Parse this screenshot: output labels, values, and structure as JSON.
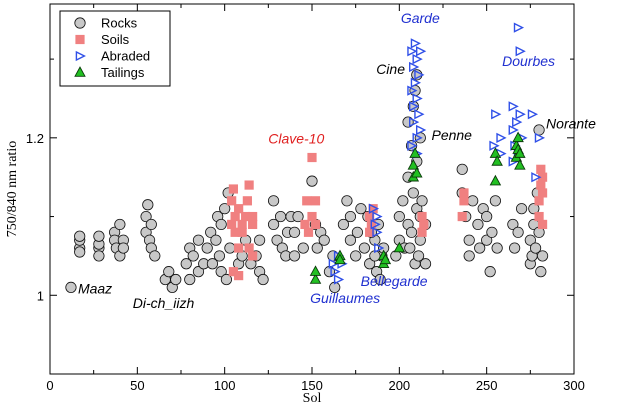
{
  "chart_data": {
    "type": "scatter",
    "xlabel": "Sol",
    "ylabel": "750/840 nm ratio",
    "xlim": [
      0,
      300
    ],
    "ylim": [
      0.9,
      1.37
    ],
    "x_ticks": [
      0,
      50,
      100,
      150,
      200,
      250,
      300
    ],
    "y_ticks": [
      1,
      1.2
    ],
    "grid": false,
    "legend_position": "top-left",
    "colors": {
      "rocks": "#c8c8c8",
      "soils": "#f08080",
      "abraded": "#3050e8",
      "tailings": "#22c022"
    },
    "series": [
      {
        "name": "Rocks",
        "marker": "circle",
        "points": [
          [
            12,
            1.01
          ],
          [
            17,
            1.06
          ],
          [
            17,
            1.07
          ],
          [
            17,
            1.075
          ],
          [
            17,
            1.055
          ],
          [
            28,
            1.06
          ],
          [
            28,
            1.065
          ],
          [
            28,
            1.075
          ],
          [
            28,
            1.05
          ],
          [
            37,
            1.08
          ],
          [
            37,
            1.07
          ],
          [
            38,
            1.06
          ],
          [
            40,
            1.05
          ],
          [
            40,
            1.09
          ],
          [
            42,
            1.07
          ],
          [
            42,
            1.06
          ],
          [
            55,
            1.08
          ],
          [
            55,
            1.1
          ],
          [
            56,
            1.115
          ],
          [
            57,
            1.07
          ],
          [
            58,
            1.06
          ],
          [
            58,
            1.09
          ],
          [
            60,
            1.05
          ],
          [
            66,
            1.02
          ],
          [
            68,
            1.03
          ],
          [
            70,
            1.01
          ],
          [
            72,
            1.02
          ],
          [
            78,
            1.04
          ],
          [
            80,
            1.06
          ],
          [
            80,
            1.02
          ],
          [
            82,
            1.05
          ],
          [
            85,
            1.07
          ],
          [
            85,
            1.03
          ],
          [
            88,
            1.04
          ],
          [
            90,
            1.06
          ],
          [
            92,
            1.08
          ],
          [
            93,
            1.04
          ],
          [
            95,
            1.07
          ],
          [
            96,
            1.1
          ],
          [
            97,
            1.05
          ],
          [
            98,
            1.09
          ],
          [
            98,
            1.03
          ],
          [
            100,
            1.11
          ],
          [
            101,
            1.02
          ],
          [
            102,
            1.13
          ],
          [
            103,
            1.06
          ],
          [
            108,
            1.04
          ],
          [
            110,
            1.05
          ],
          [
            112,
            1.07
          ],
          [
            115,
            1.04
          ],
          [
            118,
            1.05
          ],
          [
            120,
            1.07
          ],
          [
            120,
            1.03
          ],
          [
            122,
            1.02
          ],
          [
            128,
            1.12
          ],
          [
            128,
            1.09
          ],
          [
            130,
            1.07
          ],
          [
            132,
            1.1
          ],
          [
            133,
            1.06
          ],
          [
            135,
            1.05
          ],
          [
            136,
            1.08
          ],
          [
            138,
            1.1
          ],
          [
            140,
            1.05
          ],
          [
            140,
            1.08
          ],
          [
            142,
            1.1
          ],
          [
            145,
            1.06
          ],
          [
            150,
            1.145
          ],
          [
            152,
            1.09
          ],
          [
            153,
            1.06
          ],
          [
            155,
            1.08
          ],
          [
            157,
            1.07
          ],
          [
            168,
            1.09
          ],
          [
            170,
            1.12
          ],
          [
            172,
            1.07
          ],
          [
            172,
            1.1
          ],
          [
            175,
            1.05
          ],
          [
            176,
            1.08
          ],
          [
            178,
            1.11
          ],
          [
            180,
            1.06
          ],
          [
            182,
            1.1
          ],
          [
            183,
            1.04
          ],
          [
            186,
            1.07
          ],
          [
            188,
            1.09
          ],
          [
            190,
            1.05
          ],
          [
            198,
            1.05
          ],
          [
            200,
            1.07
          ],
          [
            200,
            1.1
          ],
          [
            202,
            1.12
          ],
          [
            203,
            1.06
          ],
          [
            205,
            1.15
          ],
          [
            205,
            1.09
          ],
          [
            207,
            1.08
          ],
          [
            208,
            1.13
          ],
          [
            210,
            1.11
          ],
          [
            212,
            1.07
          ],
          [
            212,
            1.1
          ],
          [
            215,
            1.09
          ],
          [
            215,
            1.04
          ],
          [
            236,
            1.16
          ],
          [
            236,
            1.13
          ],
          [
            238,
            1.1
          ],
          [
            240,
            1.07
          ],
          [
            240,
            1.05
          ],
          [
            242,
            1.12
          ],
          [
            245,
            1.09
          ],
          [
            246,
            1.06
          ],
          [
            248,
            1.11
          ],
          [
            250,
            1.07
          ],
          [
            250,
            1.1
          ],
          [
            252,
            1.03
          ],
          [
            253,
            1.08
          ],
          [
            255,
            1.12
          ],
          [
            256,
            1.06
          ],
          [
            265,
            1.09
          ],
          [
            266,
            1.06
          ],
          [
            268,
            1.08
          ],
          [
            270,
            1.11
          ],
          [
            275,
            1.07
          ],
          [
            275,
            1.04
          ],
          [
            276,
            1.05
          ],
          [
            277,
            1.09
          ],
          [
            277,
            1.11
          ],
          [
            278,
            1.06
          ],
          [
            279,
            1.13
          ],
          [
            280,
            1.08
          ],
          [
            280,
            1.21
          ],
          [
            281,
            1.03
          ],
          [
            282,
            1.05
          ],
          [
            205,
            1.22
          ],
          [
            208,
            1.24
          ],
          [
            210,
            1.28
          ],
          [
            209,
            1.26
          ],
          [
            207,
            1.19
          ],
          [
            212,
            1.2
          ],
          [
            210,
            1.17
          ],
          [
            206,
            1.06
          ],
          [
            209,
            1.04
          ],
          [
            211,
            1.05
          ],
          [
            213,
            1.12
          ],
          [
            184,
            1.08
          ],
          [
            186,
            1.05
          ],
          [
            187,
            1.03
          ],
          [
            189,
            1.02
          ],
          [
            191,
            1.06
          ],
          [
            160,
            1.03
          ],
          [
            162,
            1.05
          ],
          [
            163,
            1.01
          ]
        ]
      },
      {
        "name": "Soils",
        "marker": "square",
        "points": [
          [
            104,
            1.09
          ],
          [
            104,
            1.12
          ],
          [
            105,
            1.03
          ],
          [
            105,
            1.135
          ],
          [
            106,
            1.08
          ],
          [
            106,
            1.1
          ],
          [
            108,
            1.025
          ],
          [
            108,
            1.06
          ],
          [
            108,
            1.11
          ],
          [
            110,
            1.08
          ],
          [
            110,
            1.09
          ],
          [
            112,
            1.1
          ],
          [
            113,
            1.12
          ],
          [
            114,
            1.14
          ],
          [
            114,
            1.06
          ],
          [
            116,
            1.09
          ],
          [
            116,
            1.1
          ],
          [
            116,
            1.05
          ],
          [
            146,
            1.09
          ],
          [
            147,
            1.12
          ],
          [
            148,
            1.08
          ],
          [
            150,
            1.1
          ],
          [
            150,
            1.175
          ],
          [
            152,
            1.09
          ],
          [
            152,
            1.12
          ],
          [
            183,
            1.08
          ],
          [
            183,
            1.1
          ],
          [
            184,
            1.09
          ],
          [
            185,
            1.11
          ],
          [
            213,
            1.08
          ],
          [
            213,
            1.1
          ],
          [
            214,
            1.09
          ],
          [
            236,
            1.1
          ],
          [
            237,
            1.12
          ],
          [
            237,
            1.13
          ],
          [
            280,
            1.1
          ],
          [
            280,
            1.12
          ],
          [
            281,
            1.14
          ],
          [
            281,
            1.16
          ],
          [
            282,
            1.09
          ],
          [
            282,
            1.15
          ],
          [
            282,
            1.13
          ]
        ]
      },
      {
        "name": "Abraded",
        "marker": "triangle-right",
        "points": [
          [
            162,
            1.04
          ],
          [
            163,
            1.03
          ],
          [
            165,
            1.05
          ],
          [
            165,
            1.02
          ],
          [
            167,
            1.04
          ],
          [
            185,
            1.11
          ],
          [
            186,
            1.09
          ],
          [
            187,
            1.08
          ],
          [
            187,
            1.1
          ],
          [
            188,
            1.06
          ],
          [
            207,
            1.26
          ],
          [
            207,
            1.31
          ],
          [
            208,
            1.22
          ],
          [
            208,
            1.29
          ],
          [
            208,
            1.24
          ],
          [
            209,
            1.32
          ],
          [
            209,
            1.27
          ],
          [
            210,
            1.2
          ],
          [
            210,
            1.3
          ],
          [
            210,
            1.25
          ],
          [
            211,
            1.23
          ],
          [
            211,
            1.28
          ],
          [
            212,
            1.31
          ],
          [
            212,
            1.21
          ],
          [
            207,
            1.19
          ],
          [
            210,
            1.18
          ],
          [
            254,
            1.19
          ],
          [
            255,
            1.23
          ],
          [
            258,
            1.18
          ],
          [
            258,
            1.2
          ],
          [
            265,
            1.17
          ],
          [
            265,
            1.21
          ],
          [
            265,
            1.24
          ],
          [
            266,
            1.19
          ],
          [
            267,
            1.22
          ],
          [
            268,
            1.18
          ],
          [
            268,
            1.34
          ],
          [
            269,
            1.31
          ],
          [
            269,
            1.23
          ],
          [
            270,
            1.2
          ],
          [
            276,
            1.23
          ],
          [
            278,
            1.15
          ],
          [
            280,
            1.2
          ]
        ]
      },
      {
        "name": "Tailings",
        "marker": "triangle-up",
        "points": [
          [
            152,
            1.02
          ],
          [
            152,
            1.03
          ],
          [
            166,
            1.05
          ],
          [
            166,
            1.045
          ],
          [
            191,
            1.04
          ],
          [
            191,
            1.05
          ],
          [
            192,
            1.045
          ],
          [
            200,
            1.06
          ],
          [
            208,
            1.15
          ],
          [
            208,
            1.165
          ],
          [
            209,
            1.18
          ],
          [
            210,
            1.155
          ],
          [
            255,
            1.18
          ],
          [
            256,
            1.17
          ],
          [
            255,
            1.145
          ],
          [
            267,
            1.19
          ],
          [
            267,
            1.175
          ],
          [
            268,
            1.2
          ],
          [
            268,
            1.185
          ],
          [
            269,
            1.165
          ],
          [
            269,
            1.18
          ]
        ]
      }
    ],
    "annotations": [
      {
        "text": "Maaz",
        "x": 16,
        "y": 1.002,
        "color": "#000000",
        "anchor": "start"
      },
      {
        "text": "Di-ch_iizh",
        "x": 65,
        "y": 0.984,
        "color": "#000000",
        "anchor": "middle"
      },
      {
        "text": "Clave-10",
        "x": 141,
        "y": 1.193,
        "color": "#e02020",
        "anchor": "middle"
      },
      {
        "text": "Guillaumes",
        "x": 169,
        "y": 0.99,
        "color": "#2030d0",
        "anchor": "middle"
      },
      {
        "text": "Bellegarde",
        "x": 197,
        "y": 1.012,
        "color": "#2030d0",
        "anchor": "middle"
      },
      {
        "text": "Cine",
        "x": 195,
        "y": 1.281,
        "color": "#000000",
        "anchor": "middle"
      },
      {
        "text": "Garde",
        "x": 212,
        "y": 1.346,
        "color": "#2030d0",
        "anchor": "middle"
      },
      {
        "text": "Penne",
        "x": 230,
        "y": 1.197,
        "color": "#000000",
        "anchor": "middle"
      },
      {
        "text": "Dourbes",
        "x": 274,
        "y": 1.291,
        "color": "#2030d0",
        "anchor": "middle"
      },
      {
        "text": "Norante",
        "x": 284,
        "y": 1.212,
        "color": "#000000",
        "anchor": "start"
      }
    ]
  }
}
